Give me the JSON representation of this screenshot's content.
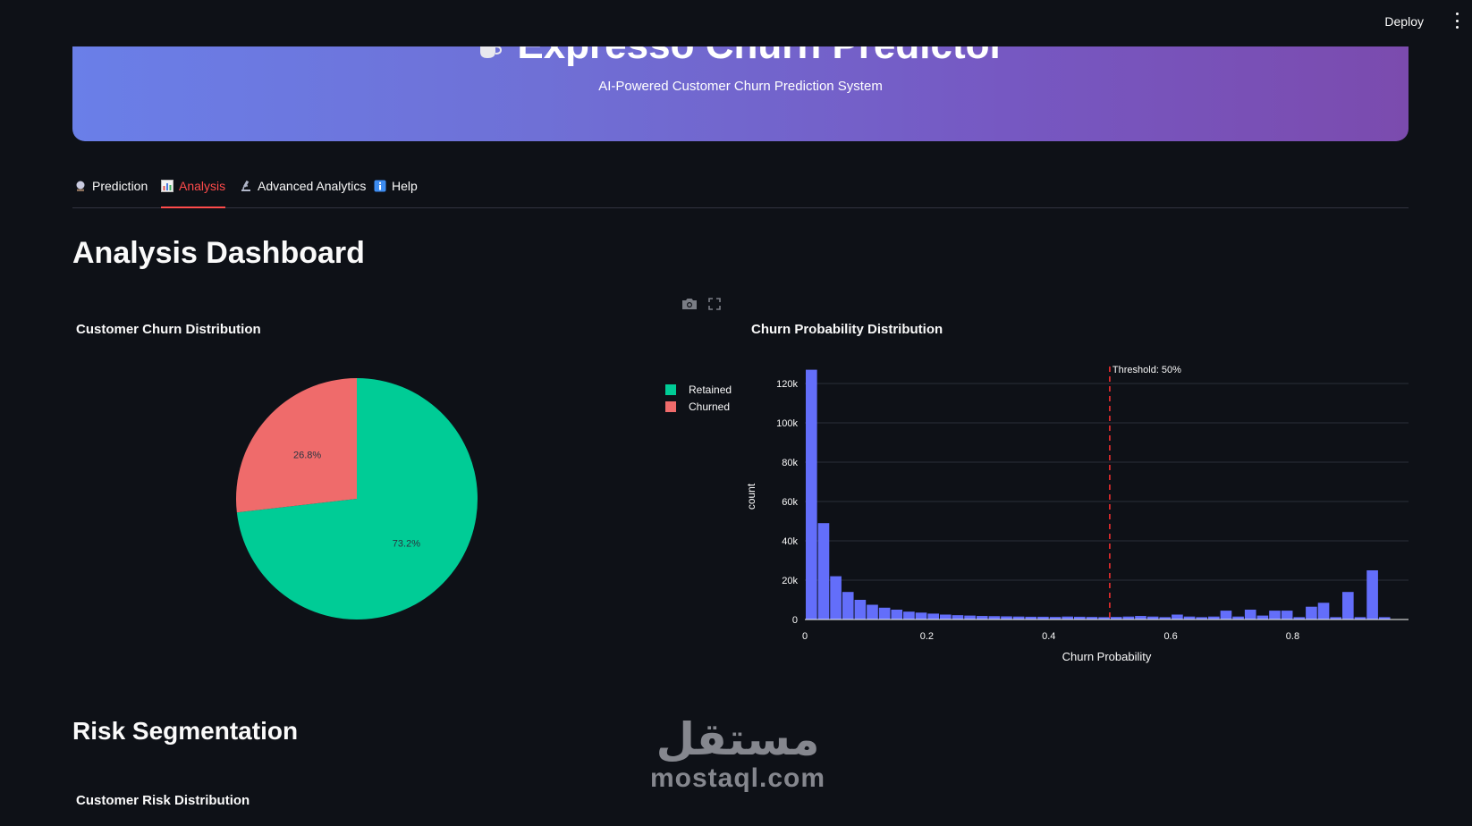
{
  "toolbar": {
    "deploy_label": "Deploy"
  },
  "header": {
    "title": "Expresso Churn Predictor",
    "subtitle": "AI-Powered Customer Churn Prediction System"
  },
  "tabs": [
    {
      "label": "Prediction",
      "icon": "crystal-ball-icon",
      "active": false
    },
    {
      "label": "Analysis",
      "icon": "bar-chart-icon",
      "active": true
    },
    {
      "label": "Advanced Analytics",
      "icon": "microscope-icon",
      "active": false
    },
    {
      "label": "Help",
      "icon": "info-icon",
      "active": false
    }
  ],
  "main": {
    "analysis_heading": "Analysis Dashboard",
    "risk_heading": "Risk Segmentation",
    "risk_chart_title": "Customer Risk Distribution"
  },
  "watermark": {
    "arabic": "مستقل",
    "latin": "mostaql.com"
  },
  "colors": {
    "background": "#0e1117",
    "active_tab": "#ff4b4b",
    "retained": "#00cc96",
    "churned": "#ef6b6b",
    "histogram": "#636efa",
    "threshold": "#ff3030"
  },
  "chart_data": [
    {
      "type": "pie",
      "title": "Customer Churn Distribution",
      "labels": [
        "Retained",
        "Churned"
      ],
      "values": [
        73.2,
        26.8
      ],
      "value_labels": [
        "73.2%",
        "26.8%"
      ],
      "legend_position": "right"
    },
    {
      "type": "bar",
      "title": "Churn Probability Distribution",
      "xlabel": "Churn Probability",
      "ylabel": "count",
      "xlim": [
        0,
        0.99
      ],
      "ylim": [
        0,
        125000
      ],
      "xticks": [
        0,
        0.2,
        0.4,
        0.6,
        0.8
      ],
      "xtick_labels": [
        "0",
        "0.2",
        "0.4",
        "0.6",
        "0.8"
      ],
      "yticks": [
        0,
        20000,
        40000,
        60000,
        80000,
        100000,
        120000
      ],
      "ytick_labels": [
        "0",
        "20k",
        "40k",
        "60k",
        "80k",
        "100k",
        "120k"
      ],
      "grid": true,
      "bin_width": 0.02,
      "x": [
        0.01,
        0.03,
        0.05,
        0.07,
        0.09,
        0.11,
        0.13,
        0.15,
        0.17,
        0.19,
        0.21,
        0.23,
        0.25,
        0.27,
        0.29,
        0.31,
        0.33,
        0.35,
        0.37,
        0.39,
        0.41,
        0.43,
        0.45,
        0.47,
        0.49,
        0.51,
        0.53,
        0.55,
        0.57,
        0.59,
        0.61,
        0.63,
        0.65,
        0.67,
        0.69,
        0.71,
        0.73,
        0.75,
        0.77,
        0.79,
        0.81,
        0.83,
        0.85,
        0.87,
        0.89,
        0.91,
        0.93,
        0.95,
        0.97
      ],
      "values": [
        127000,
        49000,
        22000,
        14000,
        10000,
        7500,
        6000,
        5000,
        4000,
        3500,
        3000,
        2500,
        2200,
        2000,
        1800,
        1700,
        1600,
        1500,
        1400,
        1400,
        1300,
        1500,
        1400,
        1300,
        1200,
        1300,
        1500,
        1800,
        1500,
        1200,
        2500,
        1500,
        1200,
        1500,
        4500,
        1500,
        5000,
        2000,
        4500,
        4500,
        1200,
        6500,
        8500,
        1200,
        14000,
        1200,
        25000,
        1200,
        0
      ],
      "annotation": {
        "x": 0.5,
        "label": "Threshold: 50%"
      }
    }
  ]
}
